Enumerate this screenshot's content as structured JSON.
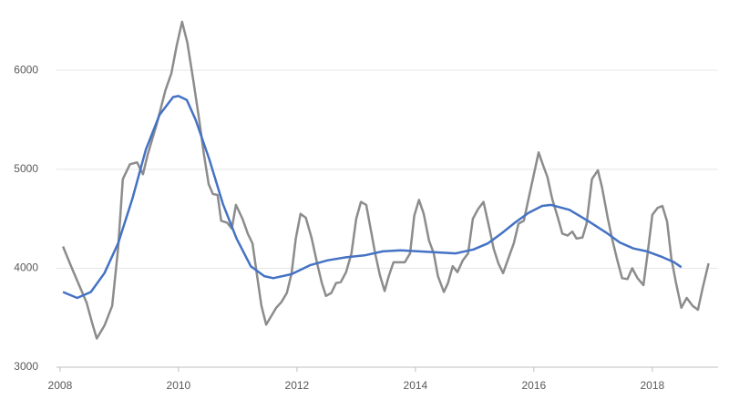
{
  "chart_data": {
    "type": "line",
    "xlim": [
      2007.94,
      2019.11
    ],
    "xticks": [
      2008,
      2010,
      2012,
      2014,
      2016,
      2018
    ],
    "ylim": [
      3000,
      6600
    ],
    "yticks": [
      3000,
      4000,
      5000,
      6000
    ],
    "grid": true,
    "series": [
      {
        "color": "#8c8c8c",
        "x": [
          2008.05,
          2008.2,
          2008.45,
          2008.54,
          2008.62,
          2008.75,
          2008.88,
          2008.98,
          2009.06,
          2009.18,
          2009.3,
          2009.4,
          2009.48,
          2009.63,
          2009.78,
          2009.88,
          2009.97,
          2010.06,
          2010.15,
          2010.25,
          2010.35,
          2010.43,
          2010.51,
          2010.58,
          2010.66,
          2010.72,
          2010.82,
          2010.9,
          2010.97,
          2011.08,
          2011.17,
          2011.25,
          2011.32,
          2011.4,
          2011.48,
          2011.55,
          2011.65,
          2011.74,
          2011.83,
          2011.91,
          2011.98,
          2012.06,
          2012.15,
          2012.25,
          2012.34,
          2012.42,
          2012.49,
          2012.58,
          2012.66,
          2012.74,
          2012.83,
          2012.92,
          2013.0,
          2013.08,
          2013.17,
          2013.25,
          2013.32,
          2013.4,
          2013.48,
          2013.55,
          2013.63,
          2013.72,
          2013.82,
          2013.91,
          2013.98,
          2014.06,
          2014.14,
          2014.23,
          2014.31,
          2014.38,
          2014.48,
          2014.55,
          2014.63,
          2014.71,
          2014.8,
          2014.89,
          2014.97,
          2015.06,
          2015.15,
          2015.25,
          2015.32,
          2015.4,
          2015.48,
          2015.57,
          2015.66,
          2015.74,
          2015.83,
          2015.91,
          2016.0,
          2016.08,
          2016.15,
          2016.23,
          2016.31,
          2016.4,
          2016.48,
          2016.57,
          2016.65,
          2016.72,
          2016.82,
          2016.89,
          2016.98,
          2017.08,
          2017.15,
          2017.25,
          2017.32,
          2017.4,
          2017.49,
          2017.58,
          2017.66,
          2017.75,
          2017.85,
          2017.92,
          2018.0,
          2018.09,
          2018.17,
          2018.25,
          2018.32,
          2018.4,
          2018.49,
          2018.58,
          2018.68,
          2018.77,
          2018.85,
          2018.95
        ],
        "values": [
          4220,
          4000,
          3650,
          3450,
          3290,
          3420,
          3620,
          4200,
          4900,
          5050,
          5070,
          4950,
          5150,
          5450,
          5800,
          5970,
          6250,
          6490,
          6280,
          5900,
          5500,
          5150,
          4850,
          4750,
          4740,
          4480,
          4460,
          4400,
          4640,
          4500,
          4350,
          4250,
          3950,
          3620,
          3430,
          3500,
          3600,
          3660,
          3750,
          3950,
          4300,
          4550,
          4510,
          4300,
          4050,
          3850,
          3720,
          3750,
          3850,
          3860,
          3960,
          4150,
          4500,
          4670,
          4640,
          4380,
          4150,
          3930,
          3770,
          3920,
          4060,
          4060,
          4060,
          4150,
          4530,
          4690,
          4550,
          4280,
          4150,
          3920,
          3760,
          3850,
          4020,
          3960,
          4080,
          4150,
          4500,
          4600,
          4670,
          4400,
          4200,
          4050,
          3950,
          4100,
          4250,
          4450,
          4480,
          4700,
          4950,
          5170,
          5050,
          4920,
          4700,
          4520,
          4350,
          4330,
          4370,
          4300,
          4310,
          4450,
          4900,
          4990,
          4820,
          4500,
          4300,
          4100,
          3900,
          3890,
          4000,
          3900,
          3830,
          4150,
          4540,
          4610,
          4630,
          4470,
          4100,
          3850,
          3600,
          3700,
          3620,
          3580,
          3800,
          4050
        ]
      },
      {
        "color": "#4472c4",
        "x": [
          2008.05,
          2008.29,
          2008.52,
          2008.75,
          2008.98,
          2009.22,
          2009.45,
          2009.68,
          2009.91,
          2010.0,
          2010.14,
          2010.29,
          2010.52,
          2010.75,
          2010.98,
          2011.22,
          2011.45,
          2011.6,
          2011.91,
          2012.22,
          2012.52,
          2012.83,
          2013.14,
          2013.45,
          2013.75,
          2014.06,
          2014.37,
          2014.68,
          2014.98,
          2015.22,
          2015.45,
          2015.68,
          2015.91,
          2016.14,
          2016.29,
          2016.6,
          2016.91,
          2017.22,
          2017.45,
          2017.68,
          2017.91,
          2018.14,
          2018.37,
          2018.49
        ],
        "values": [
          3760,
          3700,
          3760,
          3950,
          4250,
          4700,
          5200,
          5550,
          5730,
          5740,
          5700,
          5500,
          5100,
          4650,
          4300,
          4020,
          3920,
          3900,
          3940,
          4030,
          4080,
          4110,
          4130,
          4170,
          4180,
          4170,
          4160,
          4150,
          4190,
          4250,
          4350,
          4460,
          4560,
          4630,
          4640,
          4590,
          4480,
          4360,
          4260,
          4200,
          4170,
          4120,
          4060,
          4010
        ]
      }
    ]
  }
}
